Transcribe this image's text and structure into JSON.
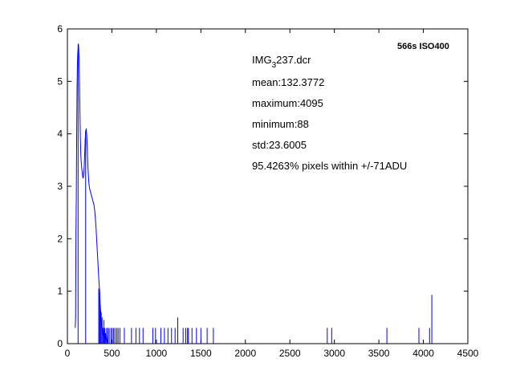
{
  "chart_data": {
    "type": "line",
    "title": "",
    "xlabel": "",
    "ylabel": "",
    "xlim": [
      0,
      4500
    ],
    "ylim": [
      0,
      6
    ],
    "x_ticks": [
      "0",
      "500",
      "1000",
      "1500",
      "2000",
      "2500",
      "3000",
      "3500",
      "4000",
      "4500"
    ],
    "y_ticks": [
      "0",
      "1",
      "2",
      "3",
      "4",
      "5",
      "6"
    ],
    "grid": false,
    "legend": "none",
    "line_color": "#0000ff",
    "annotations": {
      "file_prefix": "IMG",
      "file_subscript": "3",
      "file_suffix": "237.dcr",
      "mean": "mean:132.3772",
      "maximum": "maximum:4095",
      "minimum": "minimum:88",
      "std": "std:23.6005",
      "within": "95.4263% pixels within +/-71ADU",
      "exposure": "566s ISO400"
    },
    "series": [
      {
        "values": [
          [
            88,
            0.3
          ],
          [
            92,
            0.5
          ],
          [
            96,
            2.1
          ],
          [
            100,
            2.8
          ],
          [
            104,
            3.9
          ],
          [
            108,
            4.8
          ],
          [
            112,
            5.3
          ],
          [
            116,
            5.55
          ],
          [
            120,
            5.6
          ],
          [
            124,
            5.72
          ],
          [
            128,
            5.6
          ],
          [
            132,
            5.4
          ],
          [
            136,
            5.0
          ],
          [
            140,
            4.5
          ],
          [
            146,
            3.9
          ],
          [
            152,
            3.55
          ],
          [
            158,
            3.4
          ],
          [
            164,
            3.3
          ],
          [
            170,
            3.2
          ],
          [
            176,
            3.15
          ],
          [
            182,
            3.2
          ],
          [
            188,
            3.35
          ],
          [
            194,
            3.6
          ],
          [
            200,
            3.9
          ],
          [
            206,
            4.05
          ],
          [
            212,
            4.1
          ],
          [
            218,
            3.95
          ],
          [
            224,
            3.7
          ],
          [
            230,
            3.4
          ],
          [
            236,
            3.2
          ],
          [
            242,
            3.05
          ],
          [
            250,
            2.95
          ],
          [
            258,
            2.9
          ],
          [
            266,
            2.85
          ],
          [
            274,
            2.8
          ],
          [
            282,
            2.75
          ],
          [
            290,
            2.7
          ],
          [
            298,
            2.65
          ],
          [
            306,
            2.55
          ],
          [
            314,
            2.4
          ],
          [
            322,
            2.2
          ],
          [
            330,
            1.95
          ],
          [
            338,
            1.7
          ],
          [
            346,
            1.45
          ],
          [
            354,
            1.2
          ],
          [
            362,
            1.0
          ],
          [
            368,
            0.75
          ],
          [
            374,
            0.6
          ],
          [
            380,
            0.45
          ],
          [
            386,
            0.35
          ],
          [
            392,
            0.3
          ],
          [
            398,
            0.2
          ],
          [
            404,
            0.15
          ],
          [
            410,
            0.25
          ],
          [
            416,
            0.1
          ],
          [
            422,
            0.2
          ],
          [
            430,
            0.05
          ],
          [
            440,
            0.15
          ],
          [
            450,
            0.0
          ]
        ]
      },
      {
        "spikes": [
          [
            120,
            5.7
          ],
          [
            205,
            4.05
          ],
          [
            352,
            1.05
          ],
          [
            362,
            1.0
          ],
          [
            370,
            0.7
          ],
          [
            380,
            0.6
          ],
          [
            390,
            0.5
          ],
          [
            400,
            0.3
          ],
          [
            410,
            0.45
          ],
          [
            420,
            0.3
          ],
          [
            430,
            0.2
          ],
          [
            440,
            0.3
          ],
          [
            455,
            0.3
          ],
          [
            470,
            0.3
          ],
          [
            490,
            0.3
          ],
          [
            505,
            0.3
          ],
          [
            520,
            0.3
          ],
          [
            535,
            0.3
          ],
          [
            555,
            0.3
          ],
          [
            570,
            0.3
          ],
          [
            590,
            0.3
          ],
          [
            640,
            0.3
          ],
          [
            720,
            0.3
          ],
          [
            770,
            0.3
          ],
          [
            810,
            0.3
          ],
          [
            850,
            0.3
          ],
          [
            960,
            0.3
          ],
          [
            990,
            0.3
          ],
          [
            1050,
            0.3
          ],
          [
            1090,
            0.3
          ],
          [
            1130,
            0.3
          ],
          [
            1170,
            0.3
          ],
          [
            1210,
            0.3
          ],
          [
            1240,
            0.5
          ],
          [
            1300,
            0.3
          ],
          [
            1330,
            0.3
          ],
          [
            1350,
            0.3
          ],
          [
            1360,
            0.3
          ],
          [
            1400,
            0.3
          ],
          [
            1450,
            0.3
          ],
          [
            1500,
            0.3
          ],
          [
            1570,
            0.3
          ],
          [
            1640,
            0.3
          ],
          [
            2920,
            0.3
          ],
          [
            2970,
            0.3
          ],
          [
            3590,
            0.3
          ],
          [
            3950,
            0.3
          ],
          [
            4070,
            0.3
          ],
          [
            4095,
            0.93
          ]
        ]
      }
    ]
  }
}
